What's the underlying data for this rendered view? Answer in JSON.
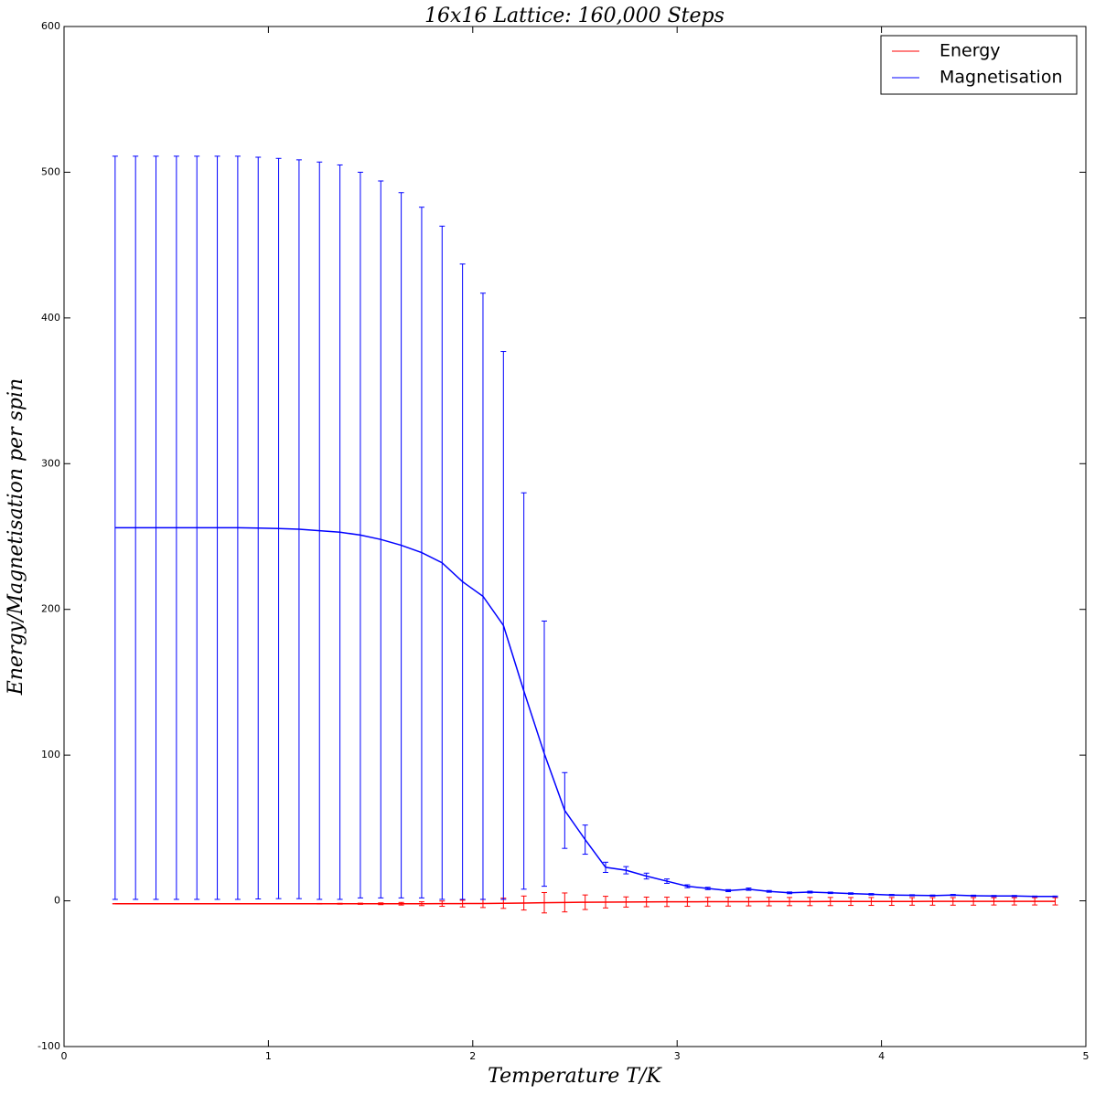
{
  "chart_data": {
    "type": "errorbar_line",
    "title": "16x16 Lattice: 160,000 Steps",
    "x_label": "Temperature T/K",
    "y_label": "Energy/Magnetisation per spin",
    "x": [
      0.25,
      0.35,
      0.45,
      0.55,
      0.65,
      0.75,
      0.85,
      0.95,
      1.05,
      1.15,
      1.25,
      1.35,
      1.45,
      1.55,
      1.65,
      1.75,
      1.85,
      1.95,
      2.05,
      2.15,
      2.25,
      2.35,
      2.45,
      2.55,
      2.65,
      2.75,
      2.85,
      2.95,
      3.05,
      3.15,
      3.25,
      3.35,
      3.45,
      3.55,
      3.65,
      3.75,
      3.85,
      3.95,
      4.05,
      4.15,
      4.25,
      4.35,
      4.45,
      4.55,
      4.65,
      4.75,
      4.85
    ],
    "series": [
      {
        "name": "Energy",
        "color": "#ff0000",
        "values": [
          -2,
          -2,
          -2,
          -2,
          -2,
          -2,
          -2,
          -2,
          -2,
          -2,
          -2,
          -2,
          -2,
          -2,
          -1.99,
          -1.97,
          -1.94,
          -1.88,
          -1.8,
          -1.68,
          -1.5,
          -1.3,
          -1.1,
          -0.97,
          -0.88,
          -0.8,
          -0.74,
          -0.69,
          -0.65,
          -0.61,
          -0.58,
          -0.55,
          -0.52,
          -0.5,
          -0.48,
          -0.46,
          -0.44,
          -0.42,
          -0.41,
          -0.39,
          -0.38,
          -0.37,
          -0.36,
          -0.35,
          -0.34,
          -0.33,
          -0.32
        ],
        "errors": [
          0.1,
          0.1,
          0.1,
          0.1,
          0.1,
          0.1,
          0.1,
          0.1,
          0.1,
          0.1,
          0.2,
          0.3,
          0.4,
          0.6,
          0.9,
          1.3,
          1.8,
          2.3,
          2.8,
          3.5,
          4.8,
          7,
          6.5,
          5,
          4,
          3.5,
          3.3,
          3.2,
          3.1,
          3.0,
          3.0,
          2.9,
          2.9,
          2.8,
          2.8,
          2.8,
          2.7,
          2.7,
          2.7,
          2.6,
          2.6,
          2.6,
          2.6,
          2.5,
          2.5,
          2.5,
          2.5
        ]
      },
      {
        "name": "Magnetisation",
        "color": "#0000ff",
        "values": [
          256,
          256,
          256,
          256,
          256,
          256,
          256,
          255.8,
          255.5,
          255,
          254,
          253,
          251,
          248,
          244,
          239,
          232,
          219,
          209,
          189,
          144,
          101,
          62,
          42,
          23,
          21,
          17,
          13.5,
          10,
          8.5,
          7,
          8,
          6.5,
          5.5,
          6,
          5.5,
          5,
          4.5,
          4,
          3.8,
          3.6,
          4,
          3.5,
          3.3,
          3.3,
          3,
          3
        ],
        "errors": [
          255,
          255,
          255,
          255,
          255,
          255,
          255,
          254.5,
          254,
          253.5,
          253,
          252,
          249,
          246,
          242,
          237,
          231,
          218,
          208,
          188,
          136,
          91,
          26,
          10,
          3.5,
          2.5,
          2,
          1.5,
          1,
          0.8,
          0.7,
          0.8,
          0.6,
          0.6,
          0.6,
          0.5,
          0.5,
          0.5,
          0.4,
          0.4,
          0.4,
          0.4,
          0.4,
          0.4,
          0.4,
          0.3,
          0.3
        ]
      }
    ],
    "xlim": [
      0,
      5
    ],
    "xticks": [
      0,
      1,
      2,
      3,
      4,
      5
    ],
    "ylim": [
      -100,
      600
    ],
    "yticks": [
      -100,
      0,
      100,
      200,
      300,
      400,
      500,
      600
    ],
    "legend": "upper right",
    "grid": false
  }
}
